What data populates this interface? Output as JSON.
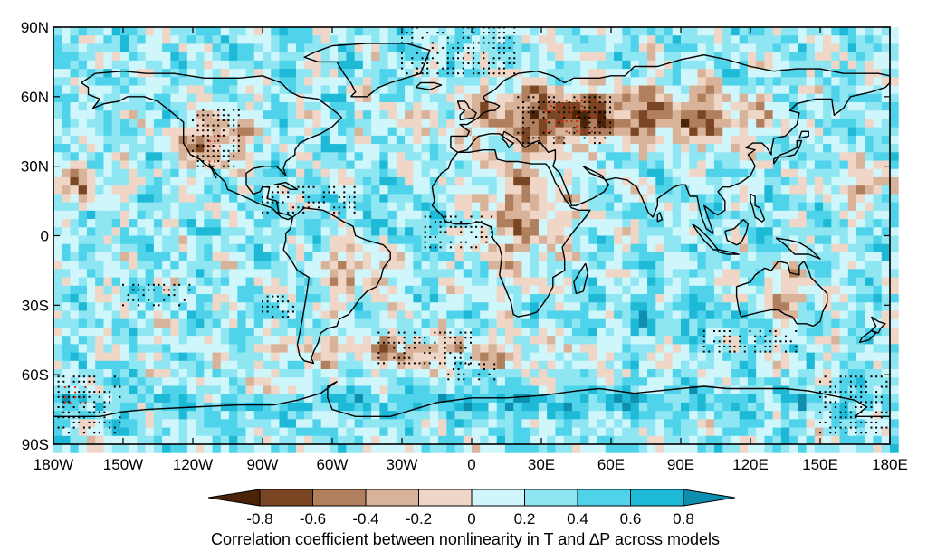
{
  "map": {
    "projection": "equirectangular",
    "lon_range": [
      -180,
      180
    ],
    "lat_range": [
      -90,
      90
    ],
    "grid_lines": false,
    "stippling": "black dots mark robust regions; red dots mark strongest correlations"
  },
  "axes": {
    "x_ticks": [
      {
        "value": -180,
        "label": "180W"
      },
      {
        "value": -150,
        "label": "150W"
      },
      {
        "value": -120,
        "label": "120W"
      },
      {
        "value": -90,
        "label": "90W"
      },
      {
        "value": -60,
        "label": "60W"
      },
      {
        "value": -30,
        "label": "30W"
      },
      {
        "value": 0,
        "label": "0"
      },
      {
        "value": 30,
        "label": "30E"
      },
      {
        "value": 60,
        "label": "60E"
      },
      {
        "value": 90,
        "label": "90E"
      },
      {
        "value": 120,
        "label": "120E"
      },
      {
        "value": 150,
        "label": "150E"
      },
      {
        "value": 180,
        "label": "180E"
      }
    ],
    "y_ticks": [
      {
        "value": 90,
        "label": "90N"
      },
      {
        "value": 60,
        "label": "60N"
      },
      {
        "value": 30,
        "label": "30N"
      },
      {
        "value": 0,
        "label": "0"
      },
      {
        "value": -30,
        "label": "30S"
      },
      {
        "value": -60,
        "label": "60S"
      },
      {
        "value": -90,
        "label": "90S"
      }
    ]
  },
  "colorbar": {
    "levels": [
      "-0.8",
      "-0.6",
      "-0.4",
      "-0.2",
      "0",
      "0.2",
      "0.4",
      "0.6",
      "0.8"
    ],
    "colors": [
      "#4b2309",
      "#7a4522",
      "#b07f5e",
      "#d9b29a",
      "#efd6c6",
      "#cff6fb",
      "#8ee6f2",
      "#4fd3eb",
      "#1eb9d6",
      "#0f8fb0"
    ],
    "caption": "Correlation coefficient between nonlinearity in T and ∆P across models"
  },
  "chart_data": {
    "type": "heatmap",
    "title": "",
    "xlabel": "",
    "ylabel": "",
    "xlim": [
      -180,
      180
    ],
    "ylim": [
      -90,
      90
    ],
    "value_range": [
      -0.8,
      0.8
    ],
    "regions": [
      {
        "name": "Eurasia",
        "sign": "negative"
      },
      {
        "name": "Africa",
        "sign": "negative"
      },
      {
        "name": "North America west",
        "sign": "negative"
      },
      {
        "name": "Australia",
        "sign": "negative"
      },
      {
        "name": "Southern Ocean band",
        "sign": "negative"
      },
      {
        "name": "Tropical oceans",
        "sign": "positive"
      },
      {
        "name": "Antarctic coast",
        "sign": "positive"
      }
    ]
  }
}
